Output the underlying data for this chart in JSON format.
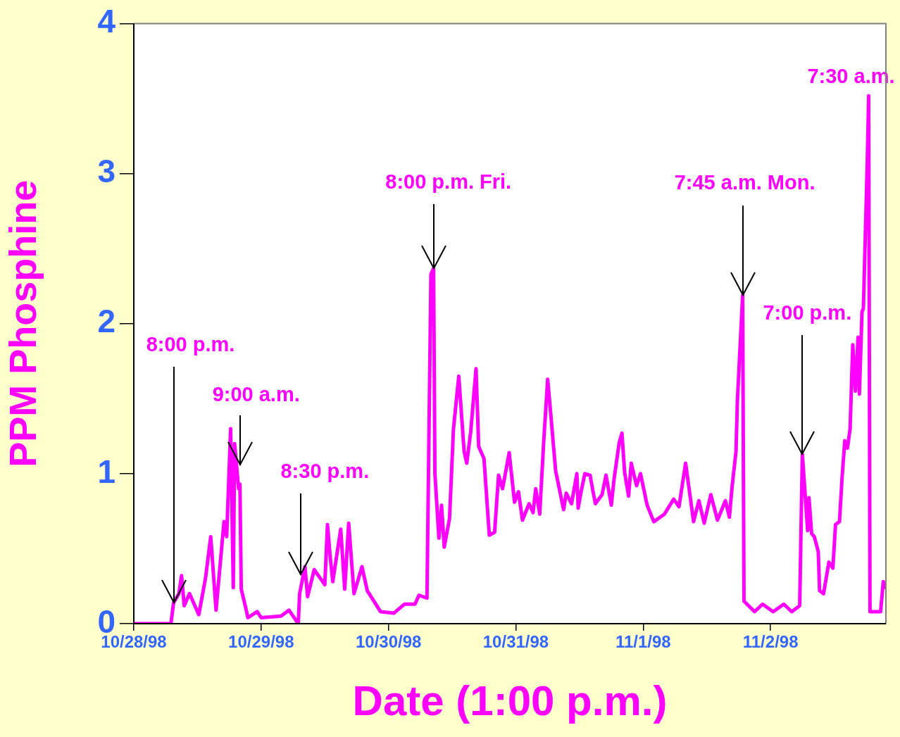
{
  "chart_data": {
    "type": "line",
    "xlabel": "Date (1:00 p.m.)",
    "ylabel": "PPM Phosphine",
    "color": "#ff00ff",
    "marker": "none",
    "line_style": "solid",
    "grid": false,
    "legend": false,
    "xlim": [
      "1998-10-28T13:00",
      "1998-11-03T10:45"
    ],
    "xticks": [
      {
        "value": "1998-10-28T13:00",
        "label": "10/28/98"
      },
      {
        "value": "1998-10-29T13:00",
        "label": "10/29/98"
      },
      {
        "value": "1998-10-30T13:00",
        "label": "10/30/98"
      },
      {
        "value": "1998-10-31T13:00",
        "label": "10/31/98"
      },
      {
        "value": "1998-11-01T13:00",
        "label": "11/1/98"
      },
      {
        "value": "1998-11-02T13:00",
        "label": "11/2/98"
      }
    ],
    "ylim": [
      0,
      4
    ],
    "yticks": [
      0,
      1,
      2,
      3,
      4
    ],
    "x": [
      "1998-10-28T13:00",
      "1998-10-28T20:00",
      "1998-10-28T20:30",
      "1998-10-28T21:30",
      "1998-10-28T22:00",
      "1998-10-28T22:30",
      "1998-10-28T23:30",
      "1998-10-29T01:15",
      "1998-10-29T02:30",
      "1998-10-29T03:30",
      "1998-10-29T04:30",
      "1998-10-29T06:00",
      "1998-10-29T06:30",
      "1998-10-29T07:15",
      "1998-10-29T07:45",
      "1998-10-29T08:00",
      "1998-10-29T08:45",
      "1998-10-29T09:00",
      "1998-10-29T09:15",
      "1998-10-29T10:00",
      "1998-10-29T10:30",
      "1998-10-29T12:15",
      "1998-10-29T13:00",
      "1998-10-29T16:45",
      "1998-10-29T18:15",
      "1998-10-29T20:00",
      "1998-10-29T20:15",
      "1998-10-29T21:15",
      "1998-10-29T21:45",
      "1998-10-29T23:00",
      "1998-10-30T01:00",
      "1998-10-30T01:30",
      "1998-10-30T02:00",
      "1998-10-30T02:30",
      "1998-10-30T04:00",
      "1998-10-30T04:45",
      "1998-10-30T05:30",
      "1998-10-30T06:30",
      "1998-10-30T08:00",
      "1998-10-30T09:00",
      "1998-10-30T11:30",
      "1998-10-30T14:00",
      "1998-10-30T16:00",
      "1998-10-30T18:00",
      "1998-10-30T18:45",
      "1998-10-30T20:15",
      "1998-10-30T21:00",
      "1998-10-30T21:30",
      "1998-10-30T21:45",
      "1998-10-30T22:30",
      "1998-10-30T23:00",
      "1998-10-30T23:30",
      "1998-10-31T00:30",
      "1998-10-31T01:15",
      "1998-10-31T02:15",
      "1998-10-31T03:15",
      "1998-10-31T03:45",
      "1998-10-31T04:30",
      "1998-10-31T05:30",
      "1998-10-31T06:00",
      "1998-10-31T07:00",
      "1998-10-31T08:00",
      "1998-10-31T09:00",
      "1998-10-31T09:45",
      "1998-10-31T10:30",
      "1998-10-31T11:45",
      "1998-10-31T12:45",
      "1998-10-31T13:30",
      "1998-10-31T14:15",
      "1998-10-31T15:30",
      "1998-10-31T16:15",
      "1998-10-31T16:45",
      "1998-10-31T17:30",
      "1998-10-31T18:15",
      "1998-10-31T19:00",
      "1998-10-31T19:30",
      "1998-10-31T20:30",
      "1998-10-31T22:00",
      "1998-10-31T22:30",
      "1998-10-31T23:30",
      "1998-11-01T00:30",
      "1998-11-01T00:45",
      "1998-11-01T01:15",
      "1998-11-01T02:00",
      "1998-11-01T03:00",
      "1998-11-01T03:30",
      "1998-11-01T04:00",
      "1998-11-01T05:15",
      "1998-11-01T06:00",
      "1998-11-01T07:00",
      "1998-11-01T07:30",
      "1998-11-01T08:30",
      "1998-11-01T09:00",
      "1998-11-01T09:30",
      "1998-11-01T10:15",
      "1998-11-01T10:45",
      "1998-11-01T11:45",
      "1998-11-01T12:30",
      "1998-11-01T13:45",
      "1998-11-01T15:00",
      "1998-11-01T17:00",
      "1998-11-01T18:45",
      "1998-11-01T19:45",
      "1998-11-01T21:00",
      "1998-11-01T22:30",
      "1998-11-01T23:30",
      "1998-11-02T00:30",
      "1998-11-02T01:45",
      "1998-11-02T03:00",
      "1998-11-02T04:30",
      "1998-11-02T05:15",
      "1998-11-02T05:45",
      "1998-11-02T06:30",
      "1998-11-02T06:45",
      "1998-11-02T07:45",
      "1998-11-02T08:00",
      "1998-11-02T10:00",
      "1998-11-02T11:30",
      "1998-11-02T13:30",
      "1998-11-02T15:30",
      "1998-11-02T17:00",
      "1998-11-02T18:30",
      "1998-11-02T19:00",
      "1998-11-02T20:00",
      "1998-11-02T20:15",
      "1998-11-02T20:45",
      "1998-11-02T21:15",
      "1998-11-02T22:00",
      "1998-11-02T22:15",
      "1998-11-02T23:00",
      "1998-11-03T00:00",
      "1998-11-03T00:45",
      "1998-11-03T01:15",
      "1998-11-03T02:00",
      "1998-11-03T02:30",
      "1998-11-03T03:00",
      "1998-11-03T03:30",
      "1998-11-03T04:00",
      "1998-11-03T04:30",
      "1998-11-03T05:00",
      "1998-11-03T05:30",
      "1998-11-03T05:45",
      "1998-11-03T06:15",
      "1998-11-03T06:30",
      "1998-11-03T07:15",
      "1998-11-03T07:30",
      "1998-11-03T07:45",
      "1998-11-03T09:45",
      "1998-11-03T10:15",
      "1998-11-03T10:45"
    ],
    "values": [
      0,
      0,
      0.14,
      0.2,
      0.32,
      0.12,
      0.2,
      0.06,
      0.3,
      0.58,
      0.09,
      0.68,
      0.58,
      1.3,
      0.24,
      1.2,
      0.9,
      0.93,
      0.23,
      0.12,
      0.04,
      0.08,
      0.04,
      0.05,
      0.09,
      0,
      0.2,
      0.38,
      0.18,
      0.36,
      0.26,
      0.66,
      0.45,
      0.28,
      0.63,
      0.23,
      0.67,
      0.2,
      0.38,
      0.22,
      0.08,
      0.07,
      0.13,
      0.13,
      0.19,
      0.17,
      2.33,
      2.37,
      1.0,
      0.57,
      0.79,
      0.51,
      0.7,
      1.3,
      1.65,
      1.15,
      1.07,
      1.28,
      1.7,
      1.18,
      1.1,
      0.59,
      0.61,
      0.99,
      0.9,
      1.14,
      0.81,
      0.88,
      0.69,
      0.8,
      0.74,
      0.9,
      0.73,
      1.21,
      1.63,
      1.43,
      1.02,
      0.76,
      0.87,
      0.8,
      1.0,
      0.77,
      0.87,
      1.0,
      0.99,
      0.89,
      0.8,
      0.86,
      0.99,
      0.79,
      0.96,
      1.21,
      1.27,
      1.01,
      0.85,
      1.07,
      0.92,
      1.0,
      0.79,
      0.68,
      0.73,
      0.83,
      0.78,
      1.07,
      0.68,
      0.82,
      0.67,
      0.86,
      0.69,
      0.82,
      0.71,
      0.91,
      1.15,
      1.48,
      2.19,
      0.15,
      0.08,
      0.13,
      0.08,
      0.13,
      0.08,
      0.12,
      1.13,
      0.62,
      0.84,
      0.6,
      0.58,
      0.48,
      0.22,
      0.2,
      0.41,
      0.37,
      0.66,
      0.68,
      0.98,
      1.22,
      1.17,
      1.3,
      1.86,
      1.55,
      1.91,
      1.53,
      2.08,
      2.1,
      3.1,
      3.52,
      0.08,
      0.08,
      0.28,
      0.24
    ],
    "annotations": [
      {
        "text": "8:00 p.m.",
        "x": "1998-10-28T20:30",
        "y": 0.14
      },
      {
        "text": "9:00 a.m.",
        "x": "1998-10-29T09:00",
        "y": 1.06
      },
      {
        "text": "8:30 p.m.",
        "x": "1998-10-29T20:30",
        "y": 0.33
      },
      {
        "text": "8:00 p.m. Fri.",
        "x": "1998-10-30T21:30",
        "y": 2.37
      },
      {
        "text": "7:45 a.m. Mon.",
        "x": "1998-11-02T07:45",
        "y": 2.19
      },
      {
        "text": "7:00 p.m.",
        "x": "1998-11-02T19:00",
        "y": 1.13
      },
      {
        "text": "7:30 a.m.",
        "x": "1998-11-03T07:30",
        "y": 3.52
      }
    ]
  }
}
